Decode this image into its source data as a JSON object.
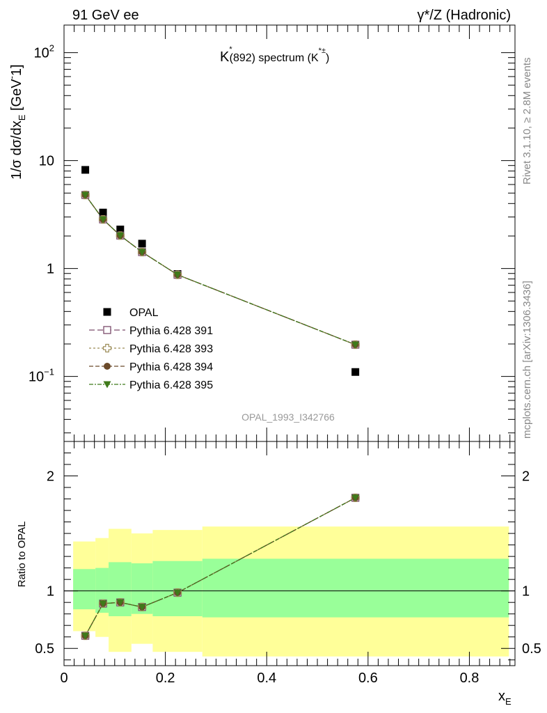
{
  "header": {
    "left": "91 GeV ee",
    "right": "γ*/Z (Hadronic)"
  },
  "side": {
    "rivet": "Rivet 3.1.10, ≥ 2.8M events",
    "mcplots": "mcplots.cern.ch [arXiv:1306.3436]"
  },
  "chart_data": [
    {
      "type": "scatter",
      "title_main": "K",
      "title_sup": "*",
      "title_mid": "(892) spectrum (K",
      "title_sup2": "*±",
      "title_end": ")",
      "watermark": "OPAL_1993_I342766",
      "ylabel_main": "1/σ dσ/dx",
      "ylabel_sub": "E",
      "ylabel_unit": " [GeV",
      "ylabel_sup": "-",
      "ylabel_end": "1]",
      "yscale": "log",
      "xlim": [
        0,
        0.89
      ],
      "ylim": [
        0.025,
        180
      ],
      "ytick_labels": [
        {
          "value": 0.1,
          "base": "10",
          "exp": "−1"
        },
        {
          "value": 1,
          "base": "1",
          "exp": ""
        },
        {
          "value": 10,
          "base": "10",
          "exp": ""
        },
        {
          "value": 100,
          "base": "10",
          "exp": "2"
        }
      ],
      "legend_position": "center-left",
      "series": [
        {
          "name": "OPAL",
          "marker": "filled-square",
          "color": "#000000",
          "x": [
            0.042,
            0.077,
            0.111,
            0.154,
            0.224,
            0.575
          ],
          "y": [
            8.2,
            3.3,
            2.3,
            1.7,
            0.89,
            0.11
          ]
        },
        {
          "name": "Pythia 6.428 391",
          "marker": "open-square",
          "color": "#7b4a6b",
          "dash": "8,4",
          "x": [
            0.042,
            0.077,
            0.111,
            0.154,
            0.224,
            0.575
          ],
          "y": [
            4.8,
            2.85,
            2.02,
            1.42,
            0.875,
            0.197
          ]
        },
        {
          "name": "Pythia 6.428 393",
          "marker": "open-cross",
          "color": "#9a8a55",
          "dash": "3,3",
          "x": [
            0.042,
            0.077,
            0.111,
            0.154,
            0.224,
            0.575
          ],
          "y": [
            4.8,
            2.85,
            2.02,
            1.42,
            0.875,
            0.197
          ]
        },
        {
          "name": "Pythia 6.428 394",
          "marker": "filled-circle",
          "color": "#6b4a2a",
          "dash": "6,3",
          "x": [
            0.042,
            0.077,
            0.111,
            0.154,
            0.224,
            0.575
          ],
          "y": [
            4.8,
            2.85,
            2.02,
            1.42,
            0.875,
            0.197
          ]
        },
        {
          "name": "Pythia 6.428 395",
          "marker": "filled-triangle-down",
          "color": "#3f7a1a",
          "dash": "6,2,2,2",
          "x": [
            0.042,
            0.077,
            0.111,
            0.154,
            0.224,
            0.575
          ],
          "y": [
            4.8,
            2.85,
            2.02,
            1.42,
            0.875,
            0.197
          ]
        }
      ]
    },
    {
      "type": "scatter",
      "ylabel": "Ratio to OPAL",
      "xlabel_main": "x",
      "xlabel_sub": "E",
      "xlim": [
        0,
        0.89
      ],
      "ylim": [
        0.35,
        2.3
      ],
      "xticks": [
        0,
        0.2,
        0.4,
        0.6,
        0.8
      ],
      "xtick_labels": [
        "0",
        "0.2",
        "0.4",
        "0.6",
        "0.8"
      ],
      "yticks": [
        0.5,
        1,
        2
      ],
      "ytick_labels": [
        "0.5",
        "1",
        "2"
      ],
      "reference_line": 1,
      "bands": {
        "bins": [
          [
            0.018,
            0.062
          ],
          [
            0.062,
            0.088
          ],
          [
            0.088,
            0.133
          ],
          [
            0.133,
            0.175
          ],
          [
            0.175,
            0.273
          ],
          [
            0.273,
            0.878
          ]
        ],
        "yellow": [
          [
            0.65,
            1.43
          ],
          [
            0.6,
            1.46
          ],
          [
            0.47,
            1.54
          ],
          [
            0.54,
            1.5
          ],
          [
            0.47,
            1.53
          ],
          [
            0.43,
            1.56
          ]
        ],
        "green": [
          [
            0.84,
            1.19
          ],
          [
            0.81,
            1.2
          ],
          [
            0.78,
            1.25
          ],
          [
            0.8,
            1.24
          ],
          [
            0.78,
            1.26
          ],
          [
            0.77,
            1.28
          ]
        ],
        "yellow_color": "#ffff99",
        "green_color": "#99ff99"
      },
      "series": [
        {
          "name": "Pythia 6.428 391",
          "marker": "open-square",
          "color": "#7b4a6b",
          "dash": "8,4",
          "x": [
            0.042,
            0.077,
            0.111,
            0.154,
            0.224,
            0.575
          ],
          "y": [
            0.61,
            0.89,
            0.9,
            0.86,
            0.985,
            1.81
          ]
        },
        {
          "name": "Pythia 6.428 393",
          "marker": "open-cross",
          "color": "#9a8a55",
          "dash": "3,3",
          "x": [
            0.042,
            0.077,
            0.111,
            0.154,
            0.224,
            0.575
          ],
          "y": [
            0.61,
            0.89,
            0.9,
            0.86,
            0.985,
            1.81
          ]
        },
        {
          "name": "Pythia 6.428 394",
          "marker": "filled-circle",
          "color": "#6b4a2a",
          "dash": "6,3",
          "x": [
            0.042,
            0.077,
            0.111,
            0.154,
            0.224,
            0.575
          ],
          "y": [
            0.61,
            0.89,
            0.9,
            0.86,
            0.985,
            1.81
          ]
        },
        {
          "name": "Pythia 6.428 395",
          "marker": "filled-triangle-down",
          "color": "#3f7a1a",
          "dash": "6,2,2,2",
          "x": [
            0.042,
            0.077,
            0.111,
            0.154,
            0.224,
            0.575
          ],
          "y": [
            0.61,
            0.89,
            0.9,
            0.86,
            0.985,
            1.81
          ]
        }
      ]
    }
  ]
}
